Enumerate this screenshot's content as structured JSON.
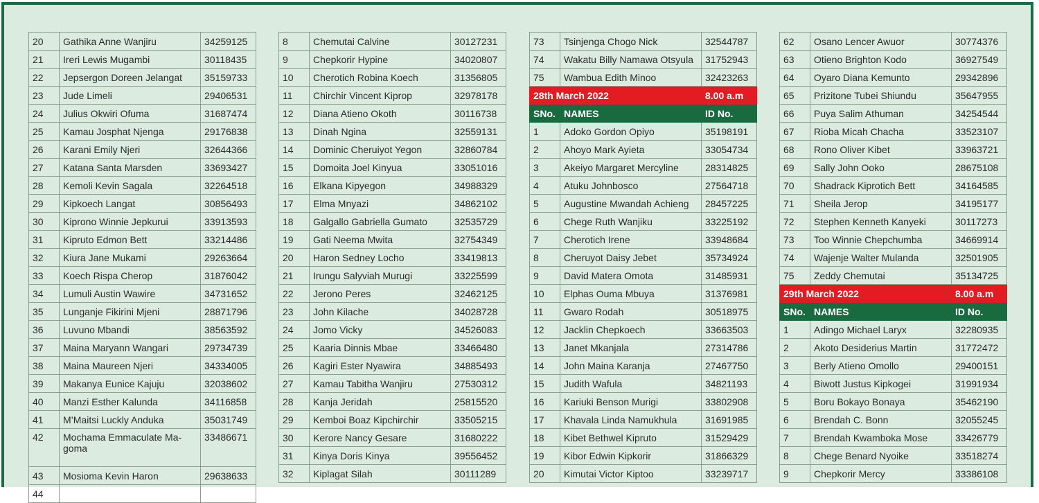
{
  "colors": {
    "background": "#dcebe0",
    "frame": "#1b6a44",
    "date_bar": "#e31b23",
    "header_bar": "#1a6a3f"
  },
  "tables": [
    {
      "rows": [
        {
          "type": "row",
          "sno": "20",
          "name": "Gathika Anne Wanjiru",
          "id": "34259125"
        },
        {
          "type": "row",
          "sno": "21",
          "name": "Ireri Lewis Mugambi",
          "id": "30118435"
        },
        {
          "type": "row",
          "sno": "22",
          "name": "Jepsergon Doreen Jelangat",
          "id": "35159733"
        },
        {
          "type": "row",
          "sno": "23",
          "name": "Jude Limeli",
          "id": "29406531"
        },
        {
          "type": "row",
          "sno": "24",
          "name": "Julius Okwiri Ofuma",
          "id": "31687474"
        },
        {
          "type": "row",
          "sno": "25",
          "name": "Kamau Josphat Njenga",
          "id": "29176838"
        },
        {
          "type": "row",
          "sno": "26",
          "name": "Karani Emily Njeri",
          "id": "32644366"
        },
        {
          "type": "row",
          "sno": "27",
          "name": "Katana Santa Marsden",
          "id": "33693427"
        },
        {
          "type": "row",
          "sno": "28",
          "name": "Kemoli Kevin Sagala",
          "id": "32264518"
        },
        {
          "type": "row",
          "sno": "29",
          "name": "Kipkoech Langat",
          "id": "30856493"
        },
        {
          "type": "row",
          "sno": "30",
          "name": "Kiprono Winnie Jepkurui",
          "id": "33913593"
        },
        {
          "type": "row",
          "sno": "31",
          "name": "Kipruto Edmon Bett",
          "id": "33214486"
        },
        {
          "type": "row",
          "sno": "32",
          "name": "Kiura Jane Mukami",
          "id": "29263664"
        },
        {
          "type": "row",
          "sno": "33",
          "name": "Koech Rispa Cherop",
          "id": "31876042"
        },
        {
          "type": "row",
          "sno": "34",
          "name": "Lumuli Austin Wawire",
          "id": "34731652"
        },
        {
          "type": "row",
          "sno": "35",
          "name": "Lunganje Fikirini Mjeni",
          "id": "28871796"
        },
        {
          "type": "row",
          "sno": "36",
          "name": "Luvuno Mbandi",
          "id": "38563592"
        },
        {
          "type": "row",
          "sno": "37",
          "name": "Maina Maryann Wangari",
          "id": "29734739"
        },
        {
          "type": "row",
          "sno": "38",
          "name": "Maina Maureen Njeri",
          "id": "34334005"
        },
        {
          "type": "row",
          "sno": "39",
          "name": "Makanya Eunice Kajuju",
          "id": "32038602"
        },
        {
          "type": "row",
          "sno": "40",
          "name": "Manzi Esther Kalunda",
          "id": "34116858"
        },
        {
          "type": "row",
          "sno": "41",
          "name": "M’Maitsi Luckly Anduka",
          "id": "35031749"
        },
        {
          "type": "row",
          "sno": "42",
          "name": "Mochama Emmaculate Ma-goma",
          "id": "33486671",
          "tall": true
        },
        {
          "type": "row",
          "sno": "43",
          "name": "Mosioma Kevin Haron",
          "id": "29638633"
        },
        {
          "type": "row",
          "sno": "44",
          "name": "",
          "id": ""
        }
      ]
    },
    {
      "rows": [
        {
          "type": "row",
          "sno": "8",
          "name": "Chemutai Calvine",
          "id": "30127231"
        },
        {
          "type": "row",
          "sno": "9",
          "name": "Chepkorir Hypine",
          "id": "34020807"
        },
        {
          "type": "row",
          "sno": "10",
          "name": "Cherotich Robina Koech",
          "id": "31356805"
        },
        {
          "type": "row",
          "sno": "11",
          "name": "Chirchir Vincent Kiprop",
          "id": "32978178"
        },
        {
          "type": "row",
          "sno": "12",
          "name": "Diana Atieno Okoth",
          "id": "30116738"
        },
        {
          "type": "row",
          "sno": "13",
          "name": "Dinah Ngina",
          "id": "32559131"
        },
        {
          "type": "row",
          "sno": "14",
          "name": "Dominic Cheruiyot Yegon",
          "id": "32860784"
        },
        {
          "type": "row",
          "sno": "15",
          "name": "Domoita Joel Kinyua",
          "id": "33051016"
        },
        {
          "type": "row",
          "sno": "16",
          "name": "Elkana Kipyegon",
          "id": "34988329"
        },
        {
          "type": "row",
          "sno": "17",
          "name": "Elma Mnyazi",
          "id": "34862102"
        },
        {
          "type": "row",
          "sno": "18",
          "name": "Galgallo Gabriella Gumato",
          "id": "32535729"
        },
        {
          "type": "row",
          "sno": "19",
          "name": "Gati Neema Mwita",
          "id": "32754349"
        },
        {
          "type": "row",
          "sno": "20",
          "name": "Haron Sedney Locho",
          "id": "33419813"
        },
        {
          "type": "row",
          "sno": "21",
          "name": "Irungu Salyviah Murugi",
          "id": "33225599"
        },
        {
          "type": "row",
          "sno": "22",
          "name": "Jerono Peres",
          "id": "32462125"
        },
        {
          "type": "row",
          "sno": "23",
          "name": "John Kilache",
          "id": "34028728"
        },
        {
          "type": "row",
          "sno": "24",
          "name": "Jomo Vicky",
          "id": "34526083"
        },
        {
          "type": "row",
          "sno": "25",
          "name": "Kaaria  Dinnis Mbae",
          "id": "33466480"
        },
        {
          "type": "row",
          "sno": "26",
          "name": "Kagiri Ester Nyawira",
          "id": "34885493"
        },
        {
          "type": "row",
          "sno": "27",
          "name": "Kamau Tabitha Wanjiru",
          "id": "27530312"
        },
        {
          "type": "row",
          "sno": "28",
          "name": "Kanja Jeridah",
          "id": "25815520"
        },
        {
          "type": "row",
          "sno": "29",
          "name": "Kemboi Boaz Kipchirchir",
          "id": "33505215"
        },
        {
          "type": "row",
          "sno": "30",
          "name": "Kerore Nancy Gesare",
          "id": "31680222"
        },
        {
          "type": "row",
          "sno": "31",
          "name": "Kinya Doris Kinya",
          "id": "39556452"
        },
        {
          "type": "row",
          "sno": "32",
          "name": "Kiplagat Silah",
          "id": "30111289"
        }
      ]
    },
    {
      "rows": [
        {
          "type": "row",
          "sno": "73",
          "name": "Tsinjenga Chogo Nick",
          "id": "32544787"
        },
        {
          "type": "row",
          "sno": "74",
          "name": "Wakatu Billy Namawa Otsyula",
          "id": "31752943"
        },
        {
          "type": "row",
          "sno": "75",
          "name": "Wambua Edith Minoo",
          "id": "32423263"
        },
        {
          "type": "date",
          "date": "28th March 2022",
          "time": "8.00 a.m"
        },
        {
          "type": "header",
          "sno": "SNo.",
          "name": "NAMES",
          "id": "ID No."
        },
        {
          "type": "row",
          "sno": "1",
          "name": "Adoko Gordon Opiyo",
          "id": "35198191"
        },
        {
          "type": "row",
          "sno": "2",
          "name": "Ahoyo Mark Ayieta",
          "id": "33054734"
        },
        {
          "type": "row",
          "sno": "3",
          "name": "Akeiyo Margaret Mercyline",
          "id": "28314825"
        },
        {
          "type": "row",
          "sno": "4",
          "name": "Atuku Johnbosco",
          "id": "27564718"
        },
        {
          "type": "row",
          "sno": "5",
          "name": "Augustine Mwandah Achieng",
          "id": "28457225"
        },
        {
          "type": "row",
          "sno": "6",
          "name": "Chege Ruth Wanjiku",
          "id": "33225192"
        },
        {
          "type": "row",
          "sno": "7",
          "name": "Cherotich Irene",
          "id": "33948684"
        },
        {
          "type": "row",
          "sno": "8",
          "name": "Cheruyot Daisy Jebet",
          "id": "35734924"
        },
        {
          "type": "row",
          "sno": "9",
          "name": "David Matera Omota",
          "id": "31485931"
        },
        {
          "type": "row",
          "sno": "10",
          "name": "Elphas Ouma Mbuya",
          "id": "31376981"
        },
        {
          "type": "row",
          "sno": "11",
          "name": "Gwaro Rodah",
          "id": "30518975"
        },
        {
          "type": "row",
          "sno": "12",
          "name": "Jacklin Chepkoech",
          "id": "33663503"
        },
        {
          "type": "row",
          "sno": "13",
          "name": "Janet Mkanjala",
          "id": "27314786"
        },
        {
          "type": "row",
          "sno": "14",
          "name": "John Maina Karanja",
          "id": "27467750"
        },
        {
          "type": "row",
          "sno": "15",
          "name": "Judith Wafula",
          "id": "34821193"
        },
        {
          "type": "row",
          "sno": "16",
          "name": "Kariuki Benson Murigi",
          "id": "33802908"
        },
        {
          "type": "row",
          "sno": "17",
          "name": "Khavala Linda Namukhula",
          "id": "31691985"
        },
        {
          "type": "row",
          "sno": "18",
          "name": "Kibet Bethwel Kipruto",
          "id": "31529429"
        },
        {
          "type": "row",
          "sno": "19",
          "name": "Kibor Edwin Kipkorir",
          "id": "31866329"
        },
        {
          "type": "row",
          "sno": "20",
          "name": "Kimutai Victor Kiptoo",
          "id": "33239717"
        }
      ]
    },
    {
      "rows": [
        {
          "type": "row",
          "sno": "62",
          "name": "Osano Lencer Awuor",
          "id": "30774376"
        },
        {
          "type": "row",
          "sno": "63",
          "name": "Otieno Brighton Kodo",
          "id": "36927549"
        },
        {
          "type": "row",
          "sno": "64",
          "name": "Oyaro Diana Kemunto",
          "id": "29342896"
        },
        {
          "type": "row",
          "sno": "65",
          "name": "Prizitone Tubei Shiundu",
          "id": "35647955"
        },
        {
          "type": "row",
          "sno": "66",
          "name": "Puya Salim Athuman",
          "id": "34254544"
        },
        {
          "type": "row",
          "sno": "67",
          "name": "Rioba Micah Chacha",
          "id": "33523107"
        },
        {
          "type": "row",
          "sno": "68",
          "name": "Rono Oliver Kibet",
          "id": "33963721"
        },
        {
          "type": "row",
          "sno": "69",
          "name": "Sally John Ooko",
          "id": "28675108"
        },
        {
          "type": "row",
          "sno": "70",
          "name": "Shadrack Kiprotich Bett",
          "id": "34164585"
        },
        {
          "type": "row",
          "sno": "71",
          "name": "Sheila Jerop",
          "id": "34195177"
        },
        {
          "type": "row",
          "sno": "72",
          "name": "Stephen Kenneth Kanyeki",
          "id": "30117273"
        },
        {
          "type": "row",
          "sno": "73",
          "name": "Too Winnie Chepchumba",
          "id": "34669914"
        },
        {
          "type": "row",
          "sno": "74",
          "name": "Wajenje Walter Mulanda",
          "id": "32501905"
        },
        {
          "type": "row",
          "sno": "75",
          "name": "Zeddy Chemutai",
          "id": "35134725"
        },
        {
          "type": "date",
          "date": "29th March 2022",
          "time": "8.00 a.m"
        },
        {
          "type": "header",
          "sno": "SNo.",
          "name": "NAMES",
          "id": "ID No."
        },
        {
          "type": "row",
          "sno": "1",
          "name": "Adingo Michael Laryx",
          "id": "32280935"
        },
        {
          "type": "row",
          "sno": "2",
          "name": "Akoto Desiderius Martin",
          "id": "31772472"
        },
        {
          "type": "row",
          "sno": "3",
          "name": "Berly Atieno Omollo",
          "id": "29400151"
        },
        {
          "type": "row",
          "sno": "4",
          "name": "Biwott Justus Kipkogei",
          "id": "31991934"
        },
        {
          "type": "row",
          "sno": "5",
          "name": "Boru Bokayo Bonaya",
          "id": "35462190"
        },
        {
          "type": "row",
          "sno": "6",
          "name": "Brendah C. Bonn",
          "id": "32055245"
        },
        {
          "type": "row",
          "sno": "7",
          "name": "Brendah Kwamboka Mose",
          "id": "33426779"
        },
        {
          "type": "row",
          "sno": "8",
          "name": "Chege Benard Nyoike",
          "id": "33518274"
        },
        {
          "type": "row",
          "sno": "9",
          "name": "Chepkorir Mercy",
          "id": "33386108"
        }
      ]
    }
  ]
}
